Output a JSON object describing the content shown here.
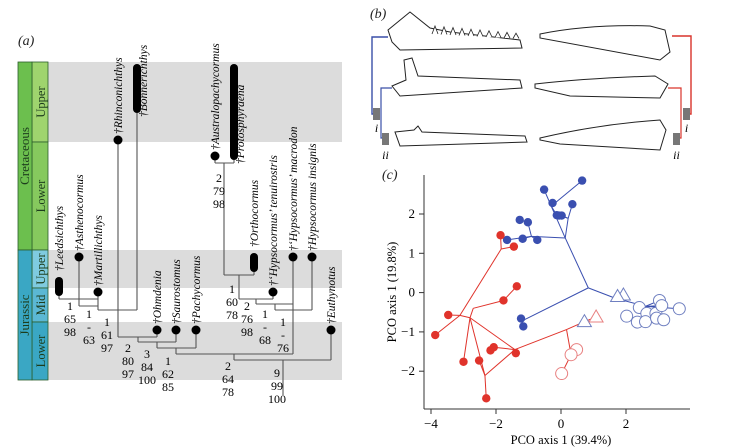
{
  "panel_a": {
    "label": "(a)",
    "periods": [
      {
        "name": "Cretaceous",
        "color": "#6cbf4e",
        "epochs": [
          {
            "name": "Upper",
            "color": "#9fd46e",
            "shaded": true
          },
          {
            "name": "Lower",
            "color": "#86c95e",
            "shaded": false
          }
        ]
      },
      {
        "name": "Jurassic",
        "color": "#3aa7c4",
        "epochs": [
          {
            "name": "Upper",
            "color": "#7fcbe0",
            "shaded": true
          },
          {
            "name": "Mid",
            "color": "#5bb8d4",
            "shaded": false
          },
          {
            "name": "Lower",
            "color": "#3aa7c4",
            "shaded": true
          }
        ]
      }
    ],
    "taxa": [
      {
        "name": "†Leedsichthys",
        "mark": "bar"
      },
      {
        "name": "†Asthenocormus",
        "mark": "dot"
      },
      {
        "name": "†Martillichthys",
        "mark": "dot"
      },
      {
        "name": "†Rhinconichthys",
        "mark": "dot"
      },
      {
        "name": "†Bonnerichthys",
        "mark": "bar"
      },
      {
        "name": "†Ohmdenia",
        "mark": "dot"
      },
      {
        "name": "†Saurostomus",
        "mark": "dot"
      },
      {
        "name": "†Pachycormus",
        "mark": "dot"
      },
      {
        "name": "†Australopachycormus",
        "mark": "dot"
      },
      {
        "name": "†Protosphyraena",
        "mark": "bar"
      },
      {
        "name": "†Orthocormus",
        "mark": "bar"
      },
      {
        "name": "†‘Hypsocormus’ tenuirostris",
        "mark": "dot"
      },
      {
        "name": "†‘Hypsocormus’ macrodon",
        "mark": "dot"
      },
      {
        "name": "†Hypsocormus insignis",
        "mark": "dot"
      },
      {
        "name": "†Euthynotus",
        "mark": "dot"
      }
    ],
    "supports": [
      [
        "1",
        "65",
        "98"
      ],
      [
        "1",
        "-",
        "63"
      ],
      [
        "1",
        "61",
        "97"
      ],
      [
        "2",
        "80",
        "97"
      ],
      [
        "3",
        "84",
        "100"
      ],
      [
        "1",
        "62",
        "85"
      ],
      [
        "2",
        "64",
        "78"
      ],
      [
        "9",
        "99",
        "100"
      ],
      [
        "2",
        "79",
        "98"
      ],
      [
        "1",
        "60",
        "78"
      ],
      [
        "2",
        "76",
        "98"
      ],
      [
        "1",
        "-",
        "68"
      ],
      [
        "1",
        "-",
        "76"
      ]
    ]
  },
  "panel_b": {
    "label": "(b)",
    "markers": [
      "i",
      "ii",
      "i",
      "ii"
    ],
    "colors": {
      "left": "#3a4fa8",
      "right": "#d9342b",
      "marker": "#777777"
    }
  },
  "panel_c": {
    "label": "(c)"
  },
  "chart_data": {
    "type": "scatter",
    "xlabel": "PCO axis 1 (39.4%)",
    "ylabel": "PCO axis 1 (19.8%)",
    "xlim": [
      -4.2,
      4.0
    ],
    "ylim": [
      -2.9,
      3.0
    ],
    "xticks": [
      -4,
      -2,
      0,
      2
    ],
    "yticks": [
      -2,
      -1,
      0,
      1,
      2
    ],
    "grid": false,
    "colors": {
      "blue": "#3a4fb0",
      "red": "#e0332b",
      "red_light": "#e88080",
      "blue_light": "#6f7fc0"
    },
    "series": [
      {
        "color": "blue",
        "marker": "filled-circle",
        "points": [
          [
            0.65,
            2.85
          ],
          [
            -0.52,
            2.62
          ],
          [
            -0.26,
            2.28
          ],
          [
            0.35,
            2.25
          ],
          [
            -0.13,
            1.97
          ],
          [
            -0.06,
            1.96
          ],
          [
            0.02,
            1.96
          ],
          [
            -1.27,
            1.85
          ],
          [
            -1.02,
            1.79
          ],
          [
            -1.66,
            1.34
          ],
          [
            -1.18,
            1.37
          ],
          [
            -0.73,
            1.34
          ],
          [
            -1.23,
            -0.66
          ],
          [
            -1.16,
            -0.86
          ]
        ]
      },
      {
        "color": "red",
        "marker": "filled-circle",
        "points": [
          [
            -1.86,
            1.46
          ],
          [
            -1.45,
            1.17
          ],
          [
            -1.36,
            0.16
          ],
          [
            -1.77,
            -0.2
          ],
          [
            -3.47,
            -0.57
          ],
          [
            -3.87,
            -1.08
          ],
          [
            -3.0,
            -1.76
          ],
          [
            -2.52,
            -1.73
          ],
          [
            -2.17,
            -1.47
          ],
          [
            -2.07,
            -1.39
          ],
          [
            -1.39,
            -1.54
          ],
          [
            -2.3,
            -2.69
          ]
        ]
      },
      {
        "color": "red_light",
        "marker": "open-circle",
        "points": [
          [
            0.48,
            -1.45
          ],
          [
            0.31,
            -1.58
          ],
          [
            0.02,
            -2.06
          ]
        ]
      },
      {
        "color": "blue_light",
        "marker": "open-circle",
        "points": [
          [
            3.03,
            -0.2
          ],
          [
            2.41,
            -0.38
          ],
          [
            2.64,
            -0.53
          ],
          [
            2.92,
            -0.53
          ],
          [
            2.02,
            -0.6
          ],
          [
            2.35,
            -0.75
          ],
          [
            2.6,
            -0.74
          ],
          [
            2.94,
            -0.65
          ],
          [
            3.16,
            -0.69
          ],
          [
            3.64,
            -0.41
          ],
          [
            3.1,
            -0.33
          ]
        ]
      },
      {
        "color": "blue_light",
        "marker": "open-triangle",
        "points": [
          [
            1.92,
            -0.06
          ],
          [
            1.74,
            -0.1
          ],
          [
            0.72,
            -0.74
          ]
        ]
      },
      {
        "color": "red_light",
        "marker": "open-triangle",
        "points": [
          [
            1.08,
            -0.62
          ]
        ]
      }
    ],
    "tree_edges": [
      {
        "color": "blue",
        "edges": [
          [
            [
              0.84,
              0.12
            ],
            [
              0.13,
              1.39
            ]
          ],
          [
            [
              0.84,
              0.12
            ],
            [
              1.66,
              -0.14
            ]
          ],
          [
            [
              0.84,
              0.12
            ],
            [
              -1.2,
              -0.72
            ]
          ],
          [
            [
              -1.2,
              -0.72
            ],
            [
              -1.23,
              -0.66
            ]
          ],
          [
            [
              -1.2,
              -0.72
            ],
            [
              -1.16,
              -0.86
            ]
          ],
          [
            [
              0.13,
              1.39
            ],
            [
              0.22,
              1.89
            ]
          ],
          [
            [
              0.22,
              1.89
            ],
            [
              0.35,
              2.25
            ]
          ],
          [
            [
              0.22,
              1.89
            ],
            [
              0.02,
              1.96
            ]
          ],
          [
            [
              0.22,
              1.89
            ],
            [
              -0.06,
              1.96
            ]
          ],
          [
            [
              0.13,
              1.39
            ],
            [
              -0.91,
              1.43
            ]
          ],
          [
            [
              -0.91,
              1.43
            ],
            [
              -1.66,
              1.34
            ]
          ],
          [
            [
              -0.91,
              1.43
            ],
            [
              -1.18,
              1.37
            ]
          ],
          [
            [
              -0.91,
              1.43
            ],
            [
              -0.73,
              1.34
            ]
          ],
          [
            [
              -0.91,
              1.43
            ],
            [
              -1.02,
              1.79
            ]
          ],
          [
            [
              -1.02,
              1.79
            ],
            [
              -1.27,
              1.85
            ]
          ],
          [
            [
              0.13,
              1.39
            ],
            [
              -0.3,
              2.2
            ]
          ],
          [
            [
              -0.3,
              2.2
            ],
            [
              -0.26,
              2.28
            ]
          ],
          [
            [
              -0.3,
              2.2
            ],
            [
              -0.52,
              2.62
            ]
          ],
          [
            [
              -0.3,
              2.2
            ],
            [
              0.65,
              2.85
            ]
          ],
          [
            [
              -0.13,
              1.97
            ],
            [
              -0.3,
              2.2
            ]
          ],
          [
            [
              1.66,
              -0.14
            ],
            [
              1.92,
              -0.06
            ]
          ],
          [
            [
              1.66,
              -0.14
            ],
            [
              1.74,
              -0.1
            ]
          ],
          [
            [
              1.66,
              -0.14
            ],
            [
              2.6,
              -0.35
            ]
          ],
          [
            [
              2.6,
              -0.35
            ],
            [
              3.03,
              -0.2
            ]
          ],
          [
            [
              2.6,
              -0.35
            ],
            [
              3.64,
              -0.41
            ]
          ],
          [
            [
              2.6,
              -0.35
            ],
            [
              2.41,
              -0.38
            ]
          ],
          [
            [
              2.6,
              -0.35
            ],
            [
              2.92,
              -0.53
            ]
          ],
          [
            [
              2.92,
              -0.53
            ],
            [
              2.64,
              -0.53
            ]
          ],
          [
            [
              2.92,
              -0.53
            ],
            [
              3.16,
              -0.69
            ]
          ],
          [
            [
              2.64,
              -0.53
            ],
            [
              2.35,
              -0.75
            ]
          ],
          [
            [
              2.35,
              -0.75
            ],
            [
              2.02,
              -0.6
            ]
          ],
          [
            [
              2.64,
              -0.53
            ],
            [
              2.6,
              -0.74
            ]
          ],
          [
            [
              2.92,
              -0.53
            ],
            [
              2.94,
              -0.65
            ]
          ],
          [
            [
              2.6,
              -0.35
            ],
            [
              3.1,
              -0.33
            ]
          ]
        ]
      },
      {
        "color": "red",
        "edges": [
          [
            [
              -3.11,
              -0.58
            ],
            [
              -3.47,
              -0.57
            ]
          ],
          [
            [
              -3.11,
              -0.58
            ],
            [
              -3.87,
              -1.08
            ]
          ],
          [
            [
              -3.11,
              -0.58
            ],
            [
              -1.84,
              1.11
            ]
          ],
          [
            [
              -3.11,
              -0.58
            ],
            [
              -2.8,
              -0.64
            ]
          ],
          [
            [
              -1.84,
              1.11
            ],
            [
              -1.86,
              1.46
            ]
          ],
          [
            [
              -1.84,
              1.11
            ],
            [
              -1.45,
              1.17
            ]
          ],
          [
            [
              -2.8,
              -0.64
            ],
            [
              -2.7,
              -0.4
            ]
          ],
          [
            [
              -2.7,
              -0.4
            ],
            [
              -1.77,
              -0.2
            ]
          ],
          [
            [
              -1.77,
              -0.2
            ],
            [
              -1.36,
              0.16
            ]
          ],
          [
            [
              -2.8,
              -0.64
            ],
            [
              -2.34,
              -2.11
            ]
          ],
          [
            [
              -2.34,
              -2.11
            ],
            [
              -2.3,
              -2.69
            ]
          ],
          [
            [
              -2.34,
              -2.11
            ],
            [
              -2.52,
              -1.73
            ]
          ],
          [
            [
              -2.8,
              -0.64
            ],
            [
              -3.0,
              -1.76
            ]
          ],
          [
            [
              -2.8,
              -0.64
            ],
            [
              -1.42,
              -1.45
            ]
          ],
          [
            [
              -1.42,
              -1.45
            ],
            [
              -1.39,
              -1.54
            ]
          ],
          [
            [
              -1.42,
              -1.45
            ],
            [
              -2.07,
              -1.39
            ]
          ],
          [
            [
              -2.07,
              -1.39
            ],
            [
              -2.17,
              -1.47
            ]
          ],
          [
            [
              -2.34,
              -2.11
            ],
            [
              -1.42,
              -1.45
            ]
          ],
          [
            [
              -1.42,
              -1.45
            ],
            [
              0.17,
              -0.94
            ]
          ],
          [
            [
              0.17,
              -0.94
            ],
            [
              0.72,
              -0.74
            ]
          ],
          [
            [
              0.72,
              -0.74
            ],
            [
              1.08,
              -0.62
            ]
          ],
          [
            [
              0.17,
              -0.94
            ],
            [
              0.31,
              -1.58
            ]
          ],
          [
            [
              0.31,
              -1.58
            ],
            [
              0.48,
              -1.45
            ]
          ],
          [
            [
              0.31,
              -1.58
            ],
            [
              0.02,
              -2.06
            ]
          ]
        ]
      }
    ]
  }
}
